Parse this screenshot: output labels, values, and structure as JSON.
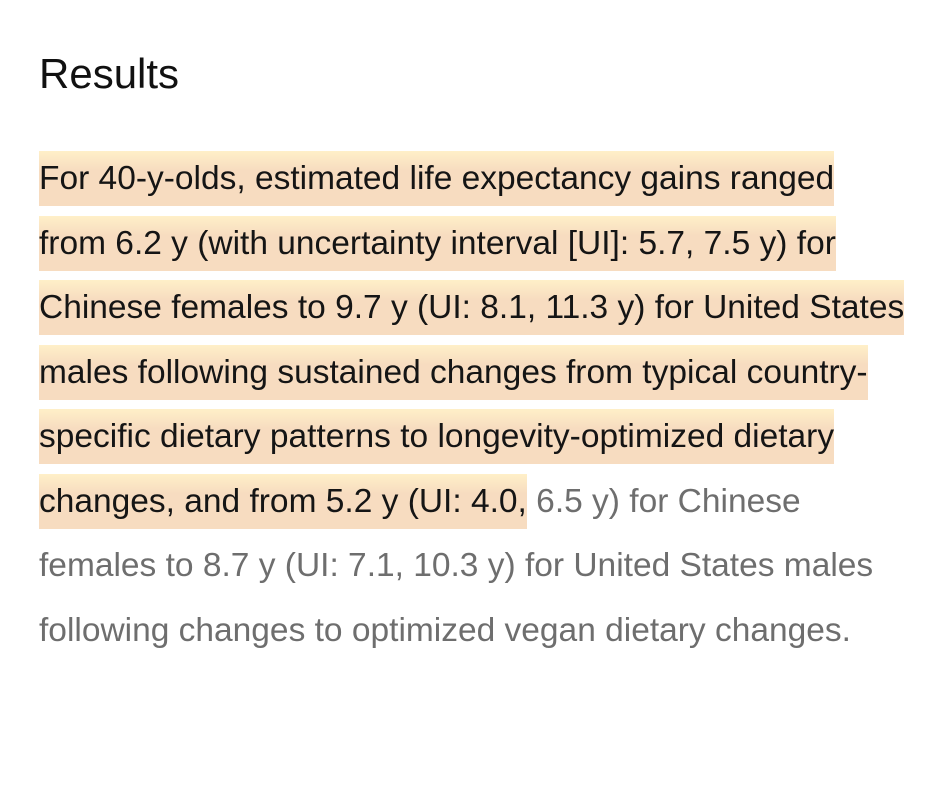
{
  "section": {
    "title": "Results",
    "highlighted_text": "For 40-y-olds, estimated life expectancy gains ranged from 6.2 y (with uncertainty interval [UI]: 5.7, 7.5 y) for Chinese females to 9.7 y (UI: 8.1, 11.3 y) for United States males following sustained changes from typical country-specific dietary patterns to longevity-optimized dietary changes, and from 5.2 y (UI: 4.0,",
    "remaining_text": " 6.5 y) for Chinese females to 8.7 y (UI: 7.1, 10.3 y) for United States males following changes to optimized vegan dietary changes."
  },
  "colors": {
    "highlight": "#f7dcc0",
    "highlight_top": "#fff0c8",
    "text_dark": "#151515",
    "text_gray": "#6e6e6e"
  }
}
